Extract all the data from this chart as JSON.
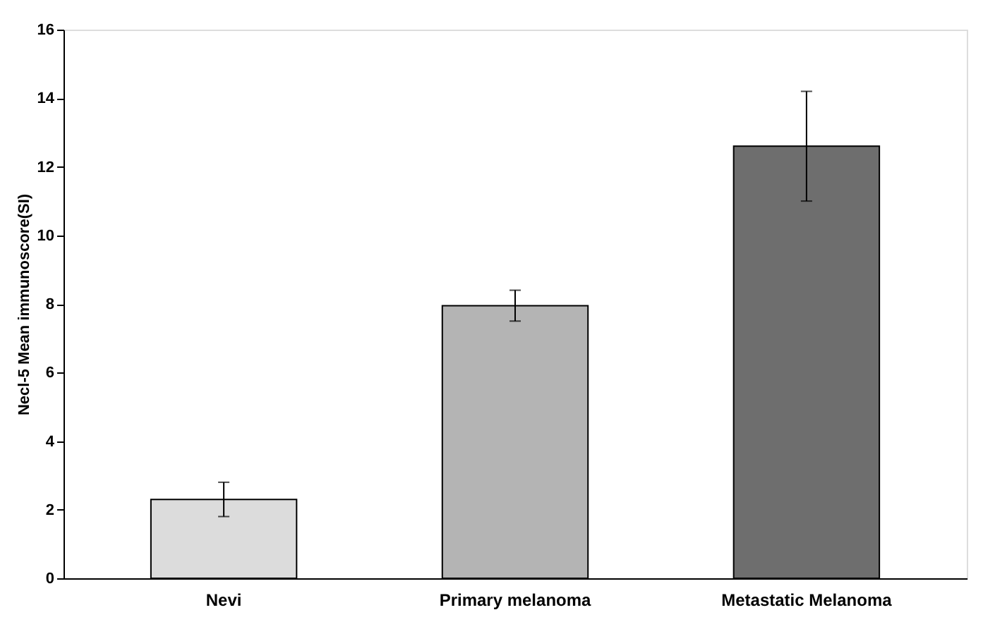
{
  "chart_data": {
    "type": "bar",
    "ylabel": "Necl-5  Mean  immunoscore(SI)",
    "categories": [
      "Nevi",
      "Primary melanoma",
      "Metastatic Melanoma"
    ],
    "values": [
      2.3,
      7.95,
      12.6
    ],
    "errors": [
      0.5,
      0.45,
      1.6
    ],
    "colors": [
      "#dcdcdc",
      "#b4b4b4",
      "#6e6e6e"
    ],
    "ylim": [
      0,
      16
    ],
    "yticks": [
      0,
      2,
      4,
      6,
      8,
      10,
      12,
      14,
      16
    ],
    "grid": false,
    "legend": false
  }
}
